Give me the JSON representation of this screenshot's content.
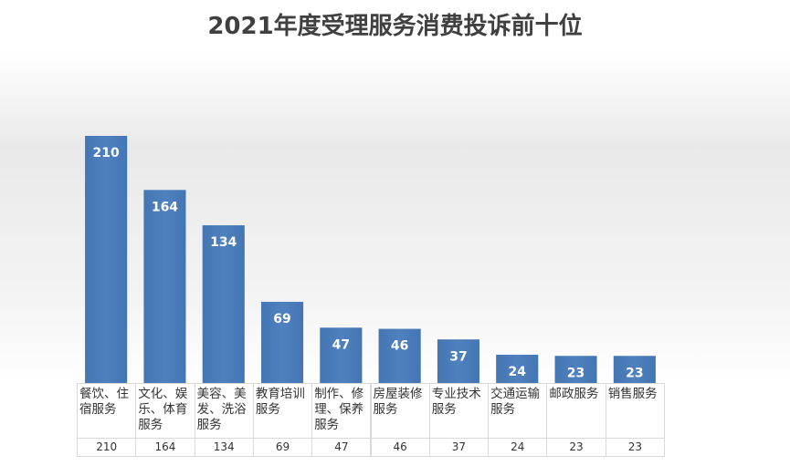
{
  "chart_data": {
    "type": "bar",
    "title": "2021年度受理服务消费投诉前十位",
    "categories": [
      "餐饮、住宿服务",
      "文化、娱乐、体育服务",
      "美容、美发、洗浴服务",
      "教育培训服务",
      "制作、修理、保养服务",
      "房屋装修服务",
      "专业技术服务",
      "交通运输服务",
      "邮政服务",
      "销售服务"
    ],
    "values": [
      210,
      164,
      134,
      69,
      47,
      46,
      37,
      24,
      23,
      23
    ],
    "color": "#4a7cba"
  }
}
